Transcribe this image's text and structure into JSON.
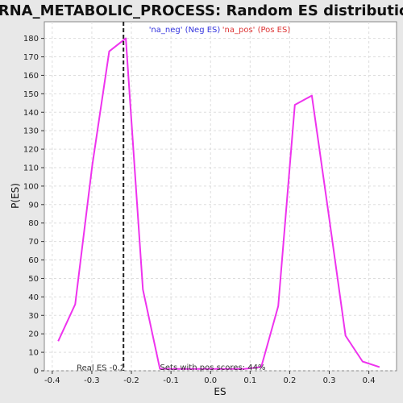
{
  "colors": {
    "background": "#e8e8e8",
    "plot_background": "#ffffff",
    "curve": "#ee33ee",
    "legend_neg": "#3333dd",
    "legend_pos": "#dd3333",
    "real_es_line": "#222222"
  },
  "chart_data": {
    "type": "line",
    "title": "MRNA_METABOLIC_PROCESS: Random ES distribution",
    "xlabel": "ES",
    "ylabel": "P(ES)",
    "xlim": [
      -0.42,
      0.47
    ],
    "ylim": [
      0,
      189
    ],
    "grid": true,
    "x_ticks": [
      "-0.4",
      "-0.3",
      "-0.2",
      "-0.1",
      "0.0",
      "0.1",
      "0.2",
      "0.3",
      "0.4"
    ],
    "x_tick_values": [
      -0.4,
      -0.3,
      -0.2,
      -0.1,
      0.0,
      0.1,
      0.2,
      0.3,
      0.4
    ],
    "y_ticks": [
      "0",
      "10",
      "20",
      "30",
      "40",
      "50",
      "60",
      "70",
      "80",
      "90",
      "100",
      "110",
      "120",
      "130",
      "140",
      "150",
      "160",
      "170",
      "180"
    ],
    "y_tick_values": [
      0,
      10,
      20,
      30,
      40,
      50,
      60,
      70,
      80,
      90,
      100,
      110,
      120,
      130,
      140,
      150,
      160,
      170,
      180
    ],
    "legend": {
      "placement": "top-center",
      "neg": "'na_neg' (Neg ES)",
      "pos": "'na_pos' (Pos ES)"
    },
    "series": [
      {
        "x": [
          -0.385,
          -0.342,
          -0.299,
          -0.256,
          -0.214,
          -0.171,
          -0.128,
          0.0,
          0.085,
          0.128,
          0.171,
          0.213,
          0.256,
          0.299,
          0.341,
          0.384,
          0.427
        ],
        "y": [
          16,
          36,
          111,
          173,
          180,
          44,
          1,
          1,
          1,
          2,
          35,
          144,
          149,
          84,
          19,
          5,
          2
        ]
      }
    ],
    "real_es": {
      "value": -0.22,
      "label": "Real ES -0.2"
    },
    "annotation": "Sets with pos scores: 44%"
  }
}
